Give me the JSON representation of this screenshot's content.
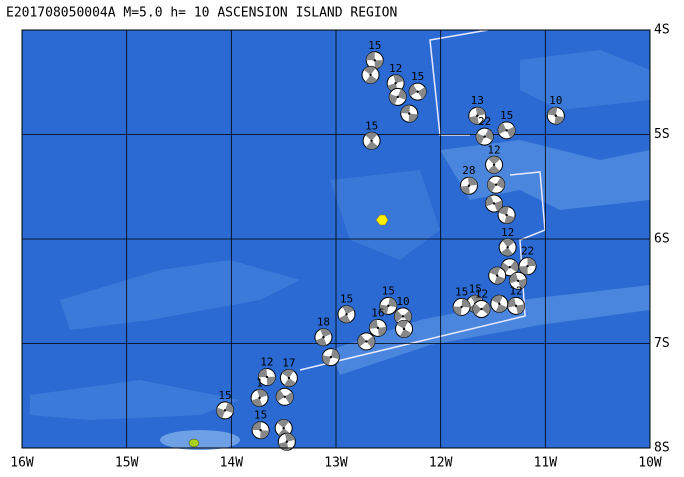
{
  "map": {
    "title": "E201708050004A M=5.0 h= 10 ASCENSION ISLAND REGION",
    "xlim": [
      -16,
      -10
    ],
    "ylim": [
      -8,
      -4
    ],
    "lon_ticks": [
      {
        "value": -16,
        "label": "16W"
      },
      {
        "value": -15,
        "label": "15W"
      },
      {
        "value": -14,
        "label": "14W"
      },
      {
        "value": -13,
        "label": "13W"
      },
      {
        "value": -12,
        "label": "12W"
      },
      {
        "value": -11,
        "label": "11W"
      },
      {
        "value": -10,
        "label": "10W"
      }
    ],
    "lat_ticks": [
      {
        "value": -4,
        "label": "4S"
      },
      {
        "value": -5,
        "label": "5S"
      },
      {
        "value": -6,
        "label": "6S"
      },
      {
        "value": -7,
        "label": "7S"
      },
      {
        "value": -8,
        "label": "8S"
      }
    ],
    "events": [
      {
        "lon": -12.63,
        "lat": -4.29,
        "depth": 15
      },
      {
        "lon": -12.67,
        "lat": -4.43,
        "depth": null
      },
      {
        "lon": -12.43,
        "lat": -4.51,
        "depth": 12
      },
      {
        "lon": -12.41,
        "lat": -4.64,
        "depth": null
      },
      {
        "lon": -12.22,
        "lat": -4.59,
        "depth": 15
      },
      {
        "lon": -12.3,
        "lat": -4.8,
        "depth": null
      },
      {
        "lon": -12.66,
        "lat": -5.06,
        "depth": 15
      },
      {
        "lon": -11.65,
        "lat": -4.82,
        "depth": 13
      },
      {
        "lon": -11.58,
        "lat": -5.02,
        "depth": 22
      },
      {
        "lon": -11.37,
        "lat": -4.96,
        "depth": 15
      },
      {
        "lon": -10.9,
        "lat": -4.82,
        "depth": 10
      },
      {
        "lon": -11.49,
        "lat": -5.29,
        "depth": 12
      },
      {
        "lon": -11.73,
        "lat": -5.49,
        "depth": 28
      },
      {
        "lon": -11.47,
        "lat": -5.48,
        "depth": null
      },
      {
        "lon": -11.49,
        "lat": -5.66,
        "depth": null
      },
      {
        "lon": -11.37,
        "lat": -5.77,
        "depth": null
      },
      {
        "lon": -11.36,
        "lat": -6.08,
        "depth": 12
      },
      {
        "lon": -11.17,
        "lat": -6.26,
        "depth": 22
      },
      {
        "lon": -11.34,
        "lat": -6.27,
        "depth": null
      },
      {
        "lon": -11.26,
        "lat": -6.4,
        "depth": null
      },
      {
        "lon": -11.46,
        "lat": -6.35,
        "depth": null
      },
      {
        "lon": -11.67,
        "lat": -6.62,
        "depth": 15
      },
      {
        "lon": -11.8,
        "lat": -6.65,
        "depth": 15
      },
      {
        "lon": -11.61,
        "lat": -6.67,
        "depth": 12
      },
      {
        "lon": -11.28,
        "lat": -6.64,
        "depth": 12
      },
      {
        "lon": -11.44,
        "lat": -6.62,
        "depth": null
      },
      {
        "lon": -12.9,
        "lat": -6.72,
        "depth": 15
      },
      {
        "lon": -12.5,
        "lat": -6.64,
        "depth": 15
      },
      {
        "lon": -12.36,
        "lat": -6.74,
        "depth": 10
      },
      {
        "lon": -12.6,
        "lat": -6.85,
        "depth": 16
      },
      {
        "lon": -12.35,
        "lat": -6.86,
        "depth": null
      },
      {
        "lon": -13.12,
        "lat": -6.94,
        "depth": 18
      },
      {
        "lon": -13.05,
        "lat": -7.13,
        "depth": null
      },
      {
        "lon": -12.71,
        "lat": -6.98,
        "depth": null
      },
      {
        "lon": -13.66,
        "lat": -7.32,
        "depth": 12
      },
      {
        "lon": -13.45,
        "lat": -7.33,
        "depth": 17
      },
      {
        "lon": -13.73,
        "lat": -7.52,
        "depth": 1
      },
      {
        "lon": -14.06,
        "lat": -7.64,
        "depth": 15
      },
      {
        "lon": -13.49,
        "lat": -7.51,
        "depth": null
      },
      {
        "lon": -13.72,
        "lat": -7.83,
        "depth": 15
      },
      {
        "lon": -13.5,
        "lat": -7.81,
        "depth": null
      },
      {
        "lon": -13.47,
        "lat": -7.94,
        "depth": null
      }
    ]
  }
}
